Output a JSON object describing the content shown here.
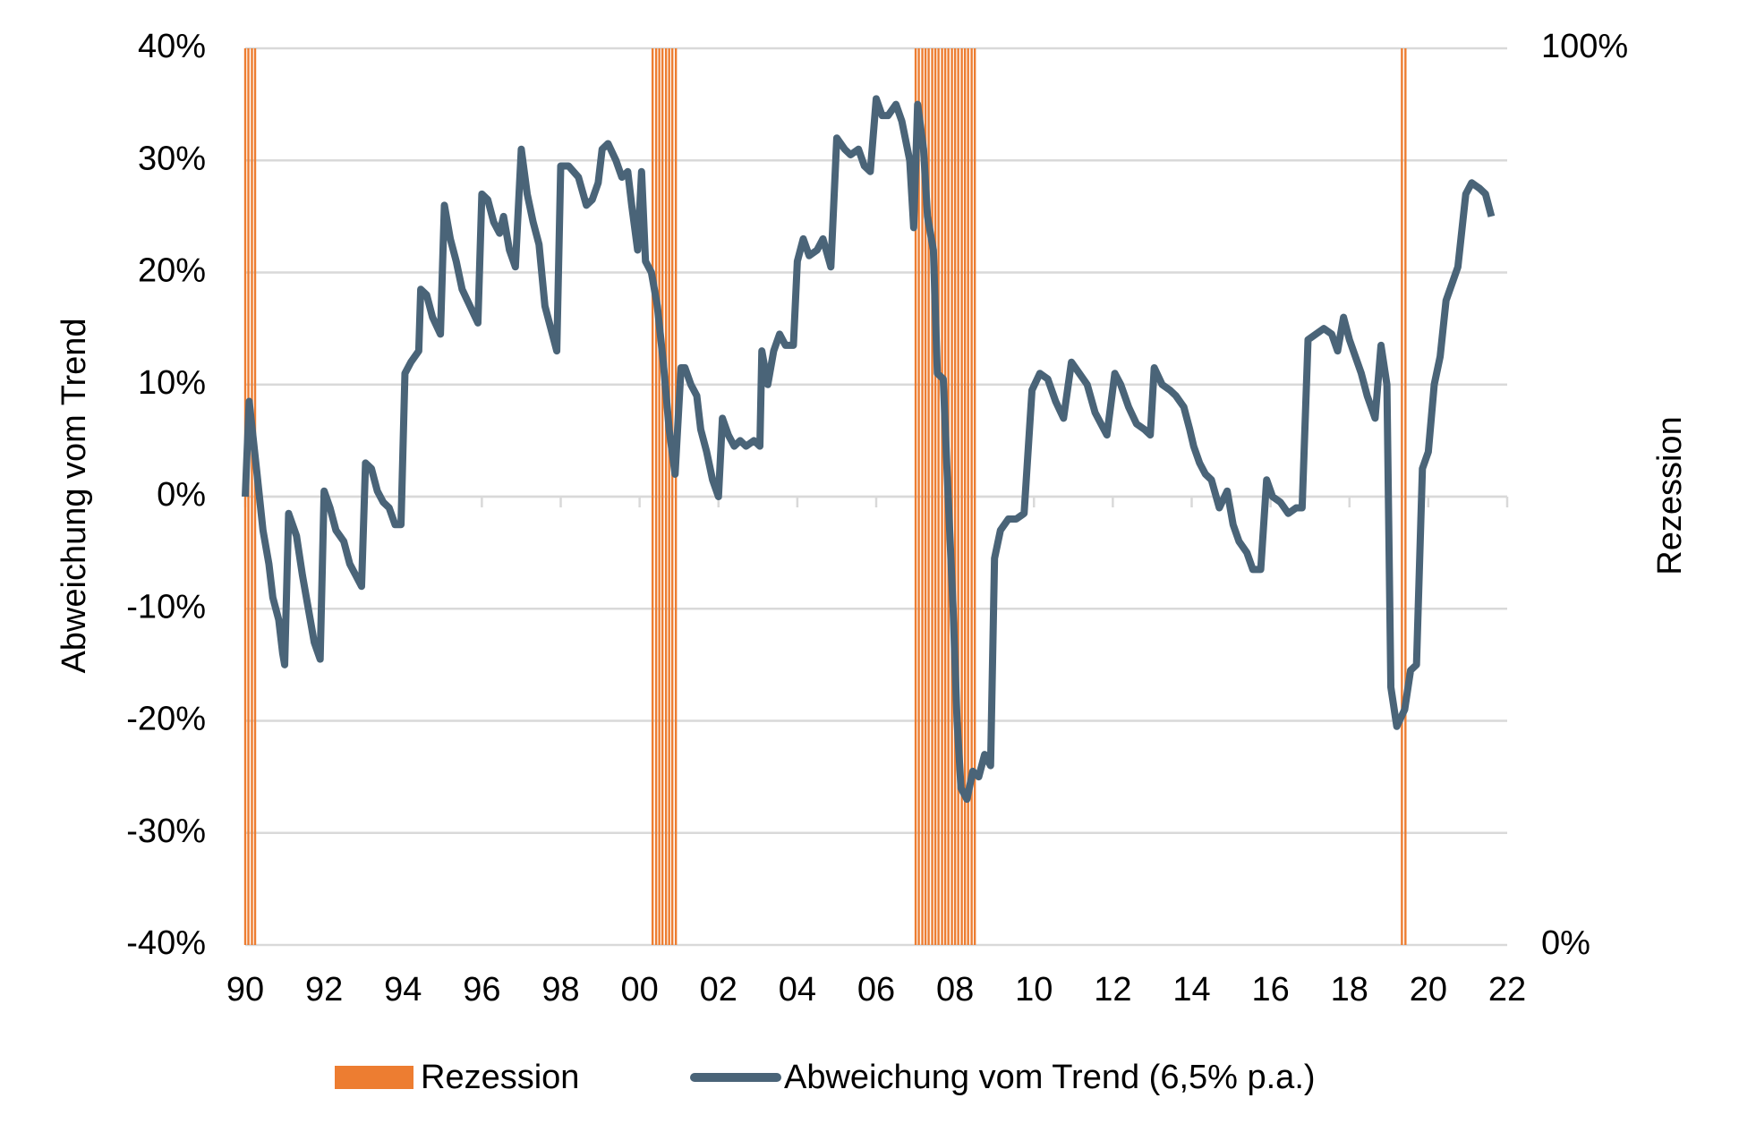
{
  "chart_data": {
    "type": "line",
    "y_axis_label": "Abweichung vom Trend",
    "y2_axis_label": "Rezession",
    "xlim": [
      1990,
      2022
    ],
    "xticks": [
      {
        "value": 1990,
        "label": "90"
      },
      {
        "value": 1992,
        "label": "92"
      },
      {
        "value": 1994,
        "label": "94"
      },
      {
        "value": 1996,
        "label": "96"
      },
      {
        "value": 1998,
        "label": "98"
      },
      {
        "value": 2000,
        "label": "00"
      },
      {
        "value": 2002,
        "label": "02"
      },
      {
        "value": 2004,
        "label": "04"
      },
      {
        "value": 2006,
        "label": "06"
      },
      {
        "value": 2008,
        "label": "08"
      },
      {
        "value": 2010,
        "label": "10"
      },
      {
        "value": 2012,
        "label": "12"
      },
      {
        "value": 2014,
        "label": "14"
      },
      {
        "value": 2016,
        "label": "16"
      },
      {
        "value": 2018,
        "label": "18"
      },
      {
        "value": 2020,
        "label": "20"
      },
      {
        "value": 2022,
        "label": "22"
      }
    ],
    "ylim": [
      -40,
      40
    ],
    "yticks": [
      {
        "value": -40,
        "label": "-40%"
      },
      {
        "value": -30,
        "label": "-30%"
      },
      {
        "value": -20,
        "label": "-20%"
      },
      {
        "value": -10,
        "label": "-10%"
      },
      {
        "value": 0,
        "label": "0%"
      },
      {
        "value": 10,
        "label": "10%"
      },
      {
        "value": 20,
        "label": "20%"
      },
      {
        "value": 30,
        "label": "30%"
      },
      {
        "value": 40,
        "label": "40%"
      }
    ],
    "y2lim": [
      0,
      100
    ],
    "y2ticks": [
      {
        "value": 0,
        "label": "0%"
      },
      {
        "value": 100,
        "label": "100%"
      }
    ],
    "grid": true,
    "legend": "bottom",
    "series": [
      {
        "name": "Rezession",
        "type": "bar",
        "axis": "y2",
        "color": "#ed7d31",
        "x": [
          1990,
          1990.08,
          1990.17,
          1990.25,
          2000.33,
          2000.42,
          2000.5,
          2000.58,
          2000.67,
          2000.75,
          2000.83,
          2000.92,
          2007,
          2007.08,
          2007.17,
          2007.25,
          2007.33,
          2007.42,
          2007.5,
          2007.58,
          2007.67,
          2007.75,
          2007.83,
          2007.92,
          2008,
          2008.08,
          2008.17,
          2008.25,
          2008.33,
          2008.42,
          2008.5,
          2019.33,
          2019.42
        ],
        "values": [
          100,
          100,
          100,
          100,
          100,
          100,
          100,
          100,
          100,
          100,
          100,
          100,
          100,
          100,
          100,
          100,
          100,
          100,
          100,
          100,
          100,
          100,
          100,
          100,
          100,
          100,
          100,
          100,
          100,
          100,
          100,
          100,
          100
        ]
      },
      {
        "name": "Abweichung vom Trend (6,5% p.a.)",
        "type": "line",
        "color": "#4a6478",
        "x": [
          1990,
          1990.1,
          1990.3,
          1990.45,
          1990.6,
          1990.7,
          1990.85,
          1990.95,
          1991,
          1991.1,
          1991.3,
          1991.45,
          1991.6,
          1991.75,
          1991.9,
          1992,
          1992.15,
          1992.3,
          1992.5,
          1992.65,
          1992.8,
          1992.95,
          1993.05,
          1993.2,
          1993.35,
          1993.5,
          1993.65,
          1993.8,
          1993.95,
          1994.05,
          1994.2,
          1994.4,
          1994.45,
          1994.6,
          1994.75,
          1994.95,
          1995.05,
          1995.2,
          1995.35,
          1995.5,
          1995.7,
          1995.9,
          1996,
          1996.15,
          1996.3,
          1996.45,
          1996.55,
          1996.7,
          1996.85,
          1997,
          1997.15,
          1997.3,
          1997.45,
          1997.6,
          1997.75,
          1997.9,
          1998,
          1998.2,
          1998.45,
          1998.65,
          1998.8,
          1998.95,
          1999.05,
          1999.2,
          1999.4,
          1999.55,
          1999.7,
          1999.8,
          1999.95,
          2000.05,
          2000.15,
          2000.3,
          2000.45,
          2000.6,
          2000.75,
          2000.9,
          2001.05,
          2001.15,
          2001.3,
          2001.45,
          2001.55,
          2001.7,
          2001.85,
          2002,
          2002.1,
          2002.25,
          2002.4,
          2002.55,
          2002.7,
          2002.9,
          2003.05,
          2003.1,
          2003.25,
          2003.4,
          2003.55,
          2003.7,
          2003.9,
          2004,
          2004.15,
          2004.3,
          2004.5,
          2004.65,
          2004.85,
          2005,
          2005.2,
          2005.35,
          2005.55,
          2005.7,
          2005.85,
          2006,
          2006.15,
          2006.3,
          2006.5,
          2006.65,
          2006.85,
          2006.95,
          2007.05,
          2007.2,
          2007.3,
          2007.45,
          2007.55,
          2007.7,
          2007.8,
          2007.95,
          2008.05,
          2008.15,
          2008.3,
          2008.45,
          2008.6,
          2008.75,
          2008.9,
          2009,
          2009.15,
          2009.35,
          2009.55,
          2009.75,
          2009.95,
          2010.15,
          2010.35,
          2010.55,
          2010.75,
          2010.95,
          2011.15,
          2011.35,
          2011.55,
          2011.7,
          2011.85,
          2012.05,
          2012.2,
          2012.4,
          2012.6,
          2012.8,
          2012.95,
          2013.05,
          2013.25,
          2013.45,
          2013.6,
          2013.8,
          2013.95,
          2014.05,
          2014.2,
          2014.35,
          2014.5,
          2014.7,
          2014.9,
          2015.05,
          2015.2,
          2015.4,
          2015.55,
          2015.75,
          2015.9,
          2016.05,
          2016.25,
          2016.45,
          2016.65,
          2016.8,
          2016.95,
          2017.15,
          2017.35,
          2017.55,
          2017.7,
          2017.85,
          2018,
          2018.15,
          2018.3,
          2018.45,
          2018.65,
          2018.8,
          2018.95,
          2019.05,
          2019.2,
          2019.4,
          2019.55,
          2019.7,
          2019.85,
          2020,
          2020.15,
          2020.3,
          2020.45,
          2020.6,
          2020.75,
          2020.95,
          2021.1,
          2021.3,
          2021.45,
          2021.6
        ],
        "values": [
          0,
          8.5,
          2,
          -3,
          -6,
          -9,
          -11,
          -14,
          -15,
          -1.5,
          -3.5,
          -7,
          -10,
          -13,
          -14.5,
          0.5,
          -1,
          -3,
          -4,
          -6,
          -7,
          -8,
          3,
          2.5,
          0.5,
          -0.5,
          -1,
          -2.5,
          -2.5,
          11,
          12,
          13,
          18.5,
          18,
          16,
          14.5,
          26,
          23,
          21,
          18.5,
          17,
          15.5,
          27,
          26.5,
          24.5,
          23.5,
          25,
          22,
          20.5,
          31,
          27,
          24.5,
          22.5,
          17,
          15,
          13,
          29.5,
          29.5,
          28.5,
          26,
          26.5,
          28,
          31,
          31.5,
          30,
          28.5,
          29,
          26,
          22,
          29,
          21,
          20,
          17,
          12,
          6,
          2,
          11.5,
          11.5,
          10,
          9,
          6,
          4,
          1.5,
          0,
          7,
          5.5,
          4.5,
          5,
          4.5,
          5,
          4.5,
          13,
          10,
          13,
          14.5,
          13.5,
          13.5,
          21,
          23,
          21.5,
          22,
          23,
          20.5,
          32,
          31,
          30.5,
          31,
          29.5,
          29,
          35.5,
          34,
          34,
          35,
          33.5,
          30,
          24,
          35,
          31,
          25,
          22,
          11,
          10.5,
          2,
          -10,
          -20,
          -26,
          -27,
          -24.5,
          -25,
          -23,
          -24,
          -5.5,
          -3,
          -2,
          -2,
          -1.5,
          9.5,
          11,
          10.5,
          8.5,
          7,
          12,
          11,
          10,
          7.5,
          6.5,
          5.5,
          11,
          10,
          8,
          6.5,
          6,
          5.5,
          11.5,
          10,
          9.5,
          9,
          8,
          6,
          4.5,
          3,
          2,
          1.5,
          -1,
          0.5,
          -2.5,
          -4,
          -5,
          -6.5,
          -6.5,
          1.5,
          0,
          -0.5,
          -1.5,
          -1,
          -1,
          14,
          14.5,
          15,
          14.5,
          13,
          16,
          14,
          12.5,
          11,
          9,
          7,
          13.5,
          10,
          -17,
          -20.5,
          -19,
          -15.5,
          -15,
          2.5,
          4,
          10,
          12.5,
          17.5,
          19,
          20.5,
          27,
          28,
          27.5,
          27,
          25
        ]
      }
    ]
  }
}
